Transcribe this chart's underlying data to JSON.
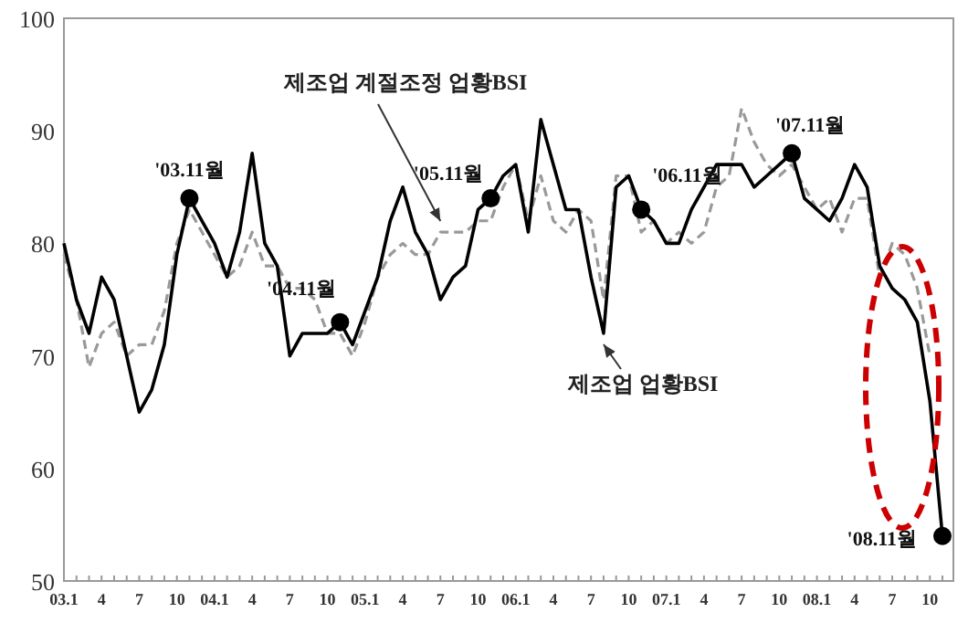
{
  "chart_data": {
    "type": "line",
    "categories": [
      "03.1",
      null,
      null,
      "4",
      null,
      null,
      "7",
      null,
      null,
      "10",
      null,
      null,
      "04.1",
      null,
      null,
      "4",
      null,
      null,
      "7",
      null,
      null,
      "10",
      null,
      null,
      "05.1",
      null,
      null,
      "4",
      null,
      null,
      "7",
      null,
      null,
      "10",
      null,
      null,
      "06.1",
      null,
      null,
      "4",
      null,
      null,
      "7",
      null,
      null,
      "10",
      null,
      null,
      "07.1",
      null,
      null,
      "4",
      null,
      null,
      "7",
      null,
      null,
      "10",
      null,
      null,
      "08.1",
      null,
      null,
      "4",
      null,
      null,
      "7",
      null,
      null,
      "10",
      null
    ],
    "series": [
      {
        "name": "제조업 계절조정 업황BSI",
        "color": "#999999",
        "line_style": "dashed",
        "marker": "none",
        "values": [
          79,
          75,
          69,
          72,
          73,
          70,
          71,
          71,
          74,
          80,
          83,
          81,
          79,
          77,
          78,
          81,
          78,
          78,
          76,
          76,
          75,
          72,
          72,
          70,
          73,
          77,
          79,
          80,
          79,
          79,
          81,
          81,
          81,
          82,
          82,
          85,
          87,
          82,
          86,
          82,
          81,
          83,
          82,
          75,
          86,
          86,
          81,
          82,
          80,
          81,
          80,
          81,
          85,
          86,
          92,
          89,
          87,
          86,
          87,
          85,
          83,
          84,
          81,
          84,
          84,
          77,
          80,
          79,
          76,
          70,
          null
        ]
      },
      {
        "name": "제조업 업황BSI",
        "color": "#000000",
        "line_style": "solid",
        "marker": "none",
        "values": [
          80,
          75,
          72,
          77,
          75,
          70,
          65,
          67,
          71,
          79,
          84,
          82,
          80,
          77,
          81,
          88,
          80,
          78,
          70,
          72,
          72,
          72,
          73,
          71,
          74,
          77,
          82,
          85,
          81,
          79,
          75,
          77,
          78,
          83,
          84,
          86,
          87,
          81,
          91,
          87,
          83,
          83,
          77,
          72,
          85,
          86,
          83,
          82,
          80,
          80,
          83,
          85,
          87,
          87,
          87,
          85,
          86,
          87,
          88,
          84,
          83,
          82,
          84,
          87,
          85,
          78,
          76,
          75,
          73,
          66,
          54
        ]
      },
      {
        "type": "scatter",
        "color": "#000000",
        "marker": "circle",
        "values": [
          null,
          null,
          null,
          null,
          null,
          null,
          null,
          null,
          null,
          null,
          84,
          null,
          null,
          null,
          null,
          null,
          null,
          null,
          null,
          null,
          null,
          null,
          73,
          null,
          null,
          null,
          null,
          null,
          null,
          null,
          null,
          null,
          null,
          null,
          84,
          null,
          null,
          null,
          null,
          null,
          null,
          null,
          null,
          null,
          null,
          null,
          83,
          null,
          null,
          null,
          null,
          null,
          null,
          null,
          null,
          null,
          null,
          null,
          88,
          null,
          null,
          null,
          null,
          null,
          null,
          null,
          null,
          null,
          null,
          null,
          54
        ]
      }
    ],
    "annotations": [
      "'03.11월",
      "'04.11월",
      "'05.11월",
      "'06.11월",
      "'07.11월",
      "'08.11월"
    ],
    "ylim": [
      50,
      100
    ],
    "yticks": [
      50,
      60,
      70,
      80,
      90,
      100
    ],
    "grid": false
  }
}
